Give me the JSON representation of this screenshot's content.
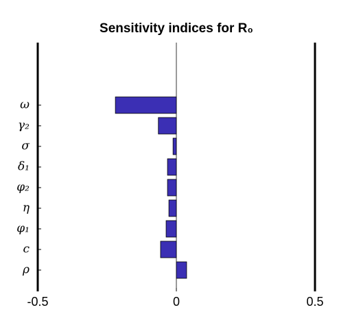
{
  "chart_data": {
    "type": "barh",
    "title": "Sensitivity indices for R₀",
    "categories": [
      "ω",
      "γ₂",
      "σ",
      "δ₁",
      "φ₂",
      "η",
      "φ₁",
      "c",
      "ρ"
    ],
    "values": [
      -0.22,
      -0.065,
      -0.012,
      -0.032,
      -0.032,
      -0.027,
      -0.037,
      -0.057,
      0.037
    ],
    "color": "#3b2fb4",
    "xlim": [
      -0.5,
      0.5
    ],
    "xticks": [
      -0.5,
      0,
      0.5
    ]
  }
}
